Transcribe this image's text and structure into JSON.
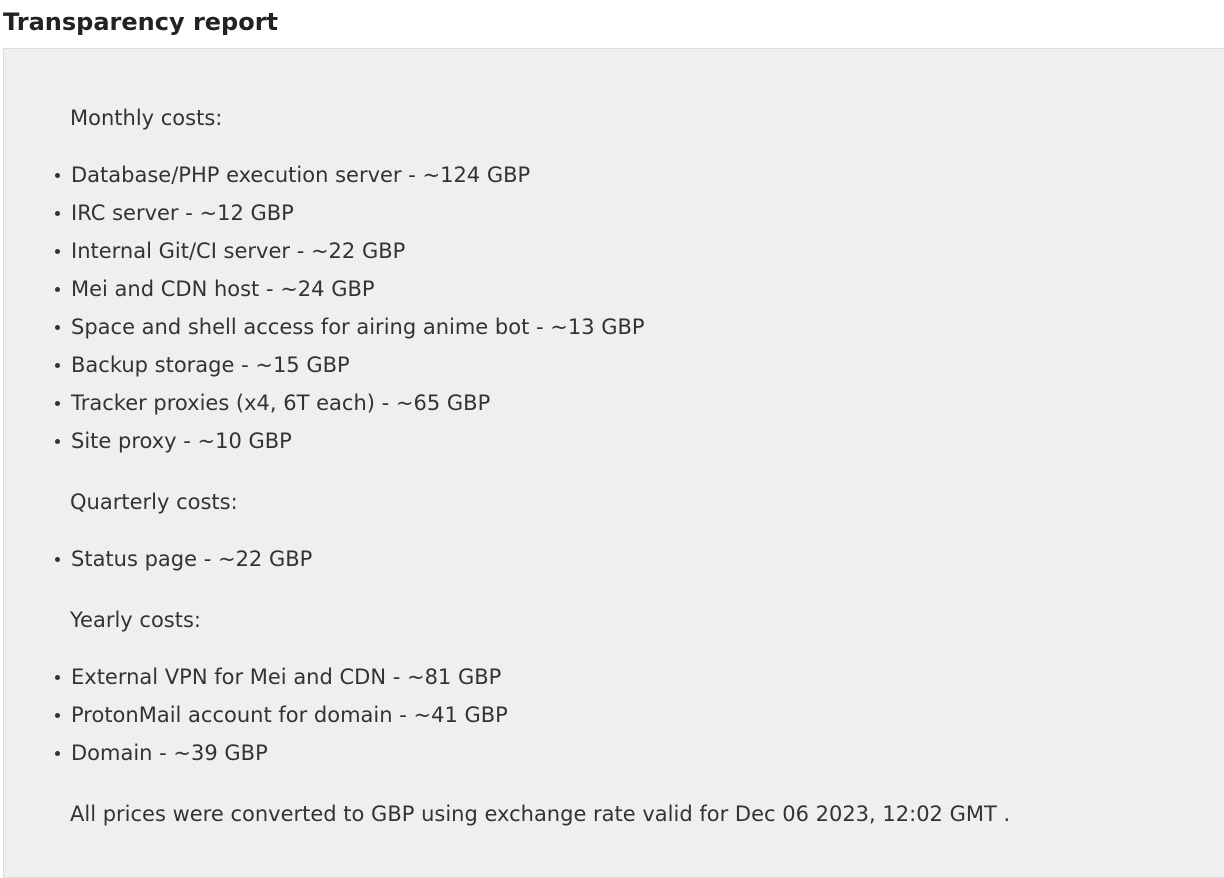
{
  "title": "Transparency report",
  "sections": [
    {
      "heading": "Monthly costs:",
      "items": [
        "Database/PHP execution server - ~124 GBP",
        "IRC server - ~12 GBP",
        "Internal Git/CI server - ~22 GBP",
        "Mei and CDN host - ~24 GBP",
        "Space and shell access for airing anime bot - ~13 GBP",
        "Backup storage - ~15 GBP",
        "Tracker proxies (x4, 6T each) - ~65 GBP",
        "Site proxy - ~10 GBP"
      ]
    },
    {
      "heading": "Quarterly costs:",
      "items": [
        "Status page - ~22 GBP"
      ]
    },
    {
      "heading": "Yearly costs:",
      "items": [
        "External VPN for Mei and CDN - ~81 GBP",
        "ProtonMail account for domain - ~41 GBP",
        "Domain - ~39 GBP"
      ]
    }
  ],
  "footer": "All prices were converted to GBP using exchange rate valid for Dec 06 2023, 12:02 GMT ."
}
